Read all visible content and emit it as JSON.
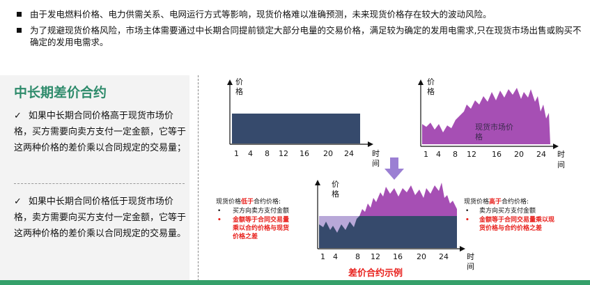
{
  "bullets": [
    "由于发电燃料价格、电力供需关系、电网运行方式等影响，现货价格难以准确预测，未来现货价格存在较大的波动风险。",
    "为了规避现货价格风险，市场主体需要通过中长期合同提前锁定大部分电量的交易价格，满足较为确定的发用电需求,只在现货市场出售或购买不确定的发用电需求。"
  ],
  "section_title": "中长期差价合约",
  "points": [
    "如果中长期合同价格高于现货市场价格，买方需要向卖方支付一定金额，它等于这两种价格的差价乘以合同规定的交易量；",
    "如果中长期合同价格低于现货市场价格，卖方需要向买方支付一定金额，它等于这两种价格的差价乘以合同规定的交易量。"
  ],
  "check_mark": "✓",
  "axis": {
    "price_chars": [
      "价",
      "格"
    ],
    "time_chars": [
      "时",
      "间"
    ],
    "ticks": [
      "1",
      "4",
      "8",
      "12",
      "16",
      "20",
      "24"
    ]
  },
  "spot_label_lines": [
    "现货市场价",
    "格"
  ],
  "left_note": {
    "prefix": "现货价格",
    "highlight": "低于",
    "suffix": "合约价格:",
    "item1": "买方向卖方支付金额",
    "item2_lines": [
      "金额等于合同交易量",
      "乘以合约价格与现货",
      "价格之差"
    ]
  },
  "right_note": {
    "prefix": "现货价格",
    "highlight": "高于",
    "suffix": "合约价格:",
    "item1": "卖方向买方支付金额",
    "item2_lines": [
      "金额等于合同交易量乘以现",
      "货价格与合约价格之差"
    ]
  },
  "bottom_caption": "差价合约示例",
  "colors": {
    "contract": "#364a6c",
    "spot": "#a64fb4",
    "spot_light": "#b8a8d8",
    "accent": "#2e8b6b",
    "red": "#e8201c",
    "arrow": "#9b7fd3"
  }
}
